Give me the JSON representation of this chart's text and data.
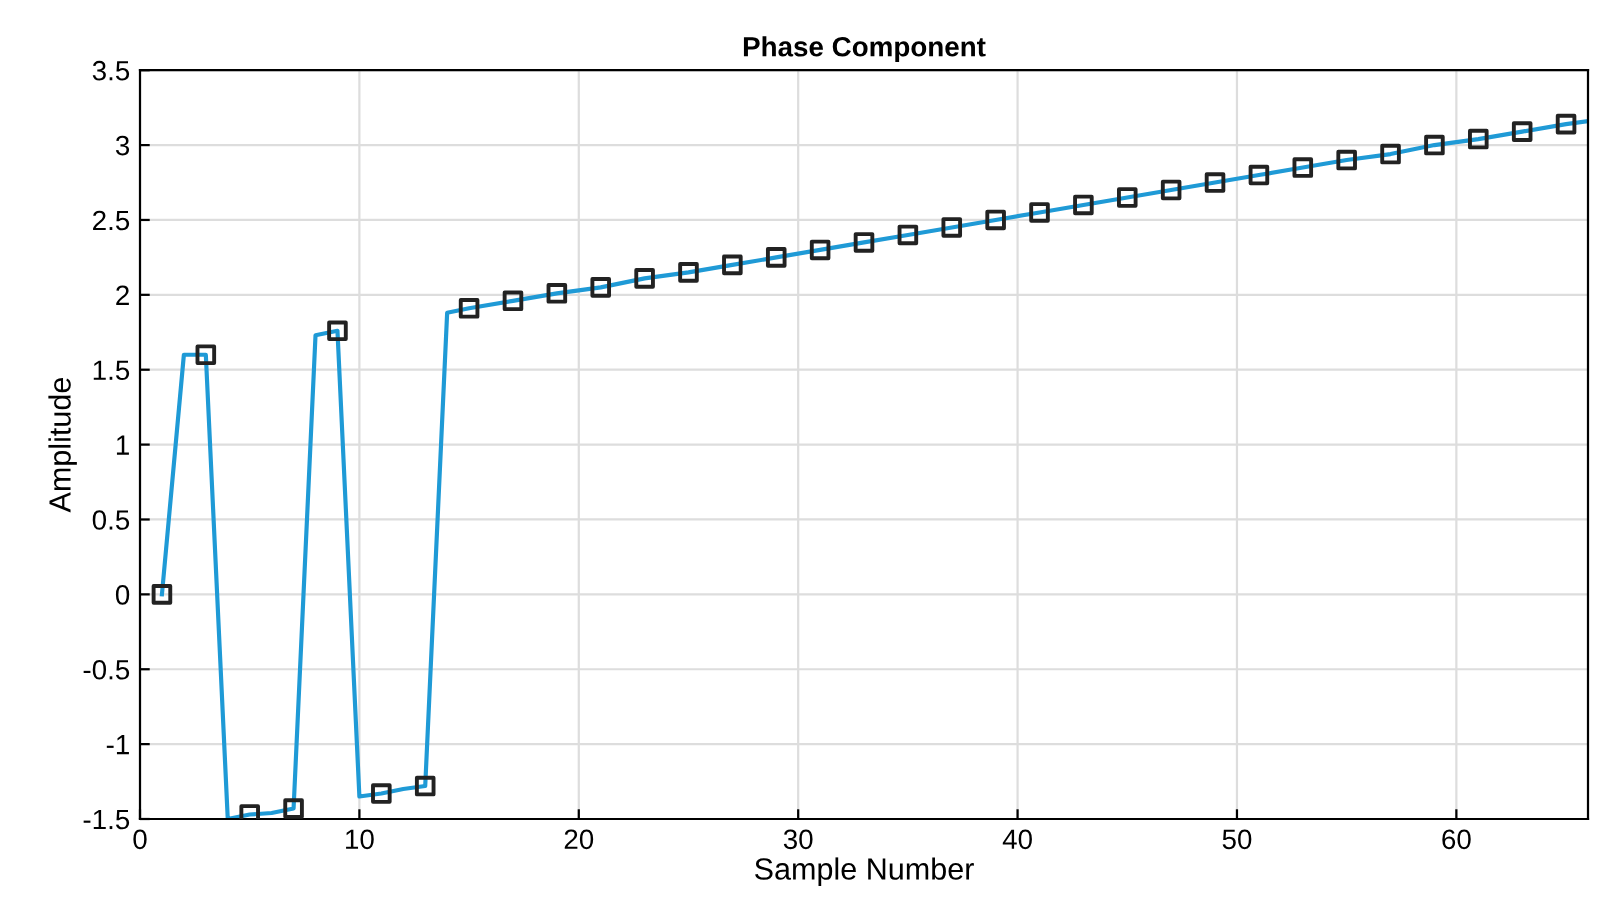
{
  "chart_data": {
    "type": "line",
    "title": "Phase Component",
    "xlabel": "Sample Number",
    "ylabel": "Amplitude",
    "xlim": [
      0,
      66
    ],
    "xticks": [
      0,
      10,
      20,
      30,
      40,
      50,
      60
    ],
    "ylim": [
      -1.5,
      3.5
    ],
    "yticks": [
      -1.5,
      -1,
      -0.5,
      0,
      0.5,
      1,
      1.5,
      2,
      2.5,
      3,
      3.5
    ],
    "grid": true,
    "series": [
      {
        "color": "#1f9ad6",
        "marker": "none",
        "line_style": "solid",
        "x": [
          1,
          2,
          3,
          4,
          5,
          6,
          7,
          8,
          9,
          10,
          11,
          12,
          13,
          14,
          15,
          17,
          19,
          21,
          23,
          25,
          27,
          29,
          31,
          33,
          35,
          37,
          39,
          41,
          43,
          45,
          47,
          49,
          51,
          53,
          55,
          57,
          59,
          61,
          63,
          65,
          66
        ],
        "values": [
          0,
          1.6,
          1.6,
          -1.5,
          -1.47,
          -1.46,
          -1.43,
          1.73,
          1.76,
          -1.35,
          -1.33,
          -1.3,
          -1.28,
          1.88,
          1.91,
          1.96,
          2.01,
          2.05,
          2.11,
          2.15,
          2.2,
          2.25,
          2.3,
          2.35,
          2.4,
          2.45,
          2.5,
          2.55,
          2.6,
          2.65,
          2.7,
          2.75,
          2.8,
          2.85,
          2.9,
          2.94,
          3.0,
          3.04,
          3.09,
          3.14,
          3.16
        ]
      },
      {
        "type": "scatter",
        "color": "#222222",
        "marker": "square",
        "x": [
          1,
          3,
          5,
          7,
          9,
          11,
          13,
          15,
          17,
          19,
          21,
          23,
          25,
          27,
          29,
          31,
          33,
          35,
          37,
          39,
          41,
          43,
          45,
          47,
          49,
          51,
          53,
          55,
          57,
          59,
          61,
          63,
          65
        ],
        "values": [
          0,
          1.6,
          -1.47,
          -1.43,
          1.76,
          -1.33,
          -1.28,
          1.91,
          1.96,
          2.01,
          2.05,
          2.11,
          2.15,
          2.2,
          2.25,
          2.3,
          2.35,
          2.4,
          2.45,
          2.5,
          2.55,
          2.6,
          2.65,
          2.7,
          2.75,
          2.8,
          2.85,
          2.9,
          2.94,
          3.0,
          3.04,
          3.09,
          3.14
        ]
      }
    ]
  }
}
